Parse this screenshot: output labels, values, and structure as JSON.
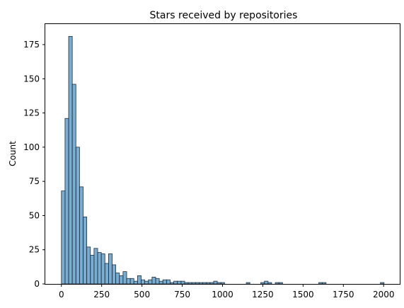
{
  "chart_data": {
    "type": "bar",
    "subtype": "histogram",
    "title": "Stars received by repositories",
    "xlabel": "",
    "ylabel": "Count",
    "xlim": [
      -100,
      2100
    ],
    "ylim": [
      0,
      190
    ],
    "bar_color": "#1f77b4",
    "grid": false,
    "bin_width": 22.5,
    "bins_start": 0,
    "x_ticks": [
      0,
      250,
      500,
      750,
      1000,
      1250,
      1500,
      1750,
      2000
    ],
    "y_ticks": [
      0,
      25,
      50,
      75,
      100,
      125,
      150,
      175
    ],
    "x_tick_labels": [
      "0",
      "250",
      "500",
      "750",
      "1000",
      "1250",
      "1500",
      "1750",
      "2000"
    ],
    "y_tick_labels": [
      "0",
      "25",
      "50",
      "75",
      "100",
      "125",
      "150",
      "175"
    ],
    "counts": [
      68,
      121,
      181,
      146,
      100,
      71,
      49,
      27,
      21,
      26,
      23,
      22,
      15,
      22,
      14,
      8,
      6,
      9,
      4,
      4,
      2,
      6,
      3,
      2,
      3,
      5,
      4,
      2,
      3,
      3,
      1,
      2,
      2,
      2,
      1,
      1,
      1,
      1,
      1,
      1,
      1,
      1,
      2,
      1,
      1,
      0,
      0,
      0,
      0,
      0,
      0,
      1,
      0,
      0,
      0,
      1,
      2,
      1,
      0,
      1,
      1,
      0,
      0,
      0,
      0,
      0,
      0,
      0,
      0,
      0,
      0,
      1,
      1,
      0,
      0,
      0,
      0,
      0,
      0,
      0,
      0,
      0,
      0,
      0,
      0,
      0,
      0,
      0,
      1
    ]
  }
}
